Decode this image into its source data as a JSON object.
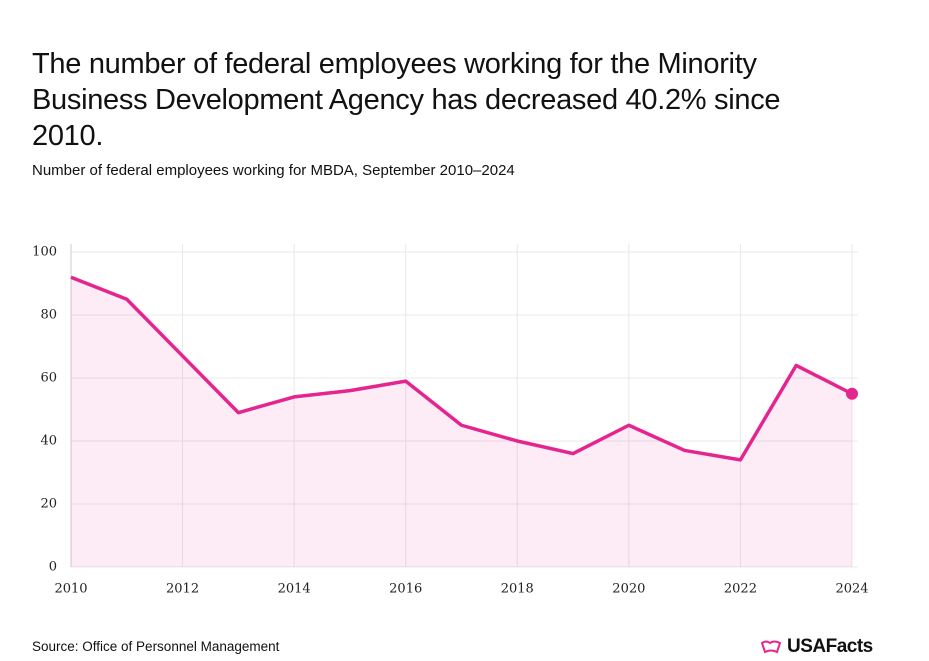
{
  "chart_data": {
    "type": "area-line",
    "title": "The number of federal employees working for the Minority Business Development Agency has decreased 40.2% since 2010.",
    "subtitle": "Number of federal employees working for MBDA, September 2010–2024",
    "source": "Source: Office of Personnel Management",
    "x": [
      2010,
      2011,
      2012,
      2013,
      2014,
      2015,
      2016,
      2017,
      2018,
      2019,
      2020,
      2021,
      2022,
      2023,
      2024
    ],
    "series": [
      {
        "name": "MBDA employees",
        "color": "#e5258f",
        "values": [
          92,
          85,
          67,
          49,
          54,
          56,
          59,
          45,
          40,
          36,
          45,
          37,
          34,
          64,
          55
        ]
      }
    ],
    "xlim": [
      2010,
      2024
    ],
    "xticks": [
      2010,
      2012,
      2014,
      2016,
      2018,
      2020,
      2022,
      2024
    ],
    "ylim": [
      0,
      100
    ],
    "yticks": [
      0,
      20,
      40,
      60,
      80,
      100
    ],
    "grid": true
  },
  "logo": "USAFacts"
}
